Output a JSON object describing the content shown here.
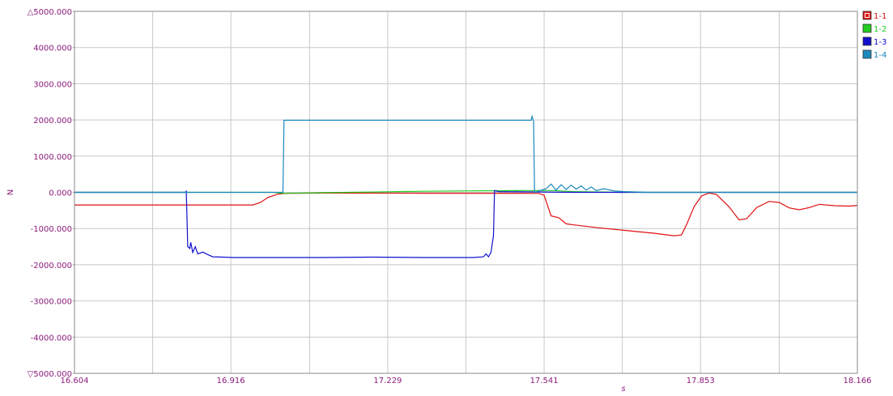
{
  "chart_data": {
    "type": "line",
    "xlabel": "s",
    "ylabel": "N",
    "xlim": [
      16.604,
      18.166
    ],
    "ylim": [
      -5000,
      5000
    ],
    "y_ticks": [
      5000,
      4000,
      3000,
      2000,
      1000,
      0,
      -1000,
      -2000,
      -3000,
      -4000,
      -5000
    ],
    "y_tick_labels": [
      "△5000.000",
      "4000.000",
      "3000.000",
      "2000.000",
      "1000.000",
      "0.000",
      "-1000.000",
      "-2000.000",
      "-3000.000",
      "-4000.000",
      "▽5000.000"
    ],
    "x_ticks": [
      16.604,
      16.916,
      17.229,
      17.541,
      17.853,
      18.166
    ],
    "x_tick_labels": [
      "16.604",
      "16.916",
      "17.229",
      "17.541",
      "17.853",
      "18.166"
    ],
    "x_minor_grid": [
      16.76,
      17.073,
      17.385,
      17.697,
      18.01
    ],
    "grid": true,
    "legend_position": "right",
    "series": [
      {
        "name": "1-1",
        "color": "#e01010",
        "legend_marker": "x",
        "points": [
          [
            16.604,
            -350
          ],
          [
            16.96,
            -350
          ],
          [
            16.975,
            -280
          ],
          [
            16.99,
            -140
          ],
          [
            17.01,
            -50
          ],
          [
            17.03,
            -30
          ],
          [
            17.1,
            -20
          ],
          [
            17.3,
            -25
          ],
          [
            17.53,
            -30
          ],
          [
            17.541,
            -80
          ],
          [
            17.555,
            -650
          ],
          [
            17.57,
            -700
          ],
          [
            17.585,
            -870
          ],
          [
            17.6,
            -900
          ],
          [
            17.65,
            -980
          ],
          [
            17.7,
            -1050
          ],
          [
            17.76,
            -1130
          ],
          [
            17.8,
            -1200
          ],
          [
            17.815,
            -1180
          ],
          [
            17.825,
            -900
          ],
          [
            17.84,
            -400
          ],
          [
            17.855,
            -100
          ],
          [
            17.87,
            -20
          ],
          [
            17.885,
            -60
          ],
          [
            17.91,
            -400
          ],
          [
            17.93,
            -760
          ],
          [
            17.945,
            -730
          ],
          [
            17.965,
            -420
          ],
          [
            17.99,
            -250
          ],
          [
            18.01,
            -280
          ],
          [
            18.03,
            -430
          ],
          [
            18.05,
            -480
          ],
          [
            18.07,
            -420
          ],
          [
            18.09,
            -330
          ],
          [
            18.12,
            -370
          ],
          [
            18.15,
            -380
          ],
          [
            18.166,
            -360
          ]
        ]
      },
      {
        "name": "1-2",
        "color": "#22cc22",
        "legend_marker": "",
        "points": [
          [
            16.604,
            0
          ],
          [
            17.0,
            0
          ],
          [
            17.02,
            -30
          ],
          [
            17.1,
            -10
          ],
          [
            17.2,
            10
          ],
          [
            17.3,
            30
          ],
          [
            17.4,
            40
          ],
          [
            17.5,
            50
          ],
          [
            17.56,
            50
          ],
          [
            17.6,
            20
          ],
          [
            17.7,
            0
          ],
          [
            18.166,
            0
          ]
        ]
      },
      {
        "name": "1-3",
        "color": "#1010cc",
        "legend_marker": "",
        "points": [
          [
            16.604,
            0
          ],
          [
            16.825,
            0
          ],
          [
            16.827,
            30
          ],
          [
            16.83,
            -1500
          ],
          [
            16.834,
            -1550
          ],
          [
            16.836,
            -1380
          ],
          [
            16.84,
            -1660
          ],
          [
            16.845,
            -1500
          ],
          [
            16.85,
            -1700
          ],
          [
            16.86,
            -1650
          ],
          [
            16.87,
            -1720
          ],
          [
            16.88,
            -1780
          ],
          [
            16.9,
            -1790
          ],
          [
            16.92,
            -1800
          ],
          [
            17.0,
            -1800
          ],
          [
            17.1,
            -1800
          ],
          [
            17.2,
            -1790
          ],
          [
            17.3,
            -1800
          ],
          [
            17.4,
            -1800
          ],
          [
            17.42,
            -1780
          ],
          [
            17.425,
            -1700
          ],
          [
            17.43,
            -1780
          ],
          [
            17.435,
            -1650
          ],
          [
            17.44,
            -1200
          ],
          [
            17.442,
            50
          ],
          [
            17.45,
            20
          ],
          [
            17.6,
            0
          ],
          [
            18.166,
            0
          ]
        ]
      },
      {
        "name": "1-4",
        "color": "#1a88bb",
        "legend_marker": "",
        "points": [
          [
            16.604,
            0
          ],
          [
            17.02,
            0
          ],
          [
            17.022,
            1990
          ],
          [
            17.1,
            1990
          ],
          [
            17.2,
            1990
          ],
          [
            17.3,
            1990
          ],
          [
            17.4,
            1990
          ],
          [
            17.5,
            1990
          ],
          [
            17.515,
            1990
          ],
          [
            17.517,
            2100
          ],
          [
            17.52,
            1950
          ],
          [
            17.522,
            0
          ],
          [
            17.545,
            100
          ],
          [
            17.555,
            230
          ],
          [
            17.565,
            60
          ],
          [
            17.575,
            210
          ],
          [
            17.585,
            80
          ],
          [
            17.595,
            200
          ],
          [
            17.605,
            90
          ],
          [
            17.615,
            180
          ],
          [
            17.625,
            60
          ],
          [
            17.635,
            150
          ],
          [
            17.645,
            50
          ],
          [
            17.66,
            100
          ],
          [
            17.68,
            40
          ],
          [
            17.7,
            20
          ],
          [
            17.75,
            0
          ],
          [
            18.166,
            0
          ]
        ]
      }
    ]
  }
}
